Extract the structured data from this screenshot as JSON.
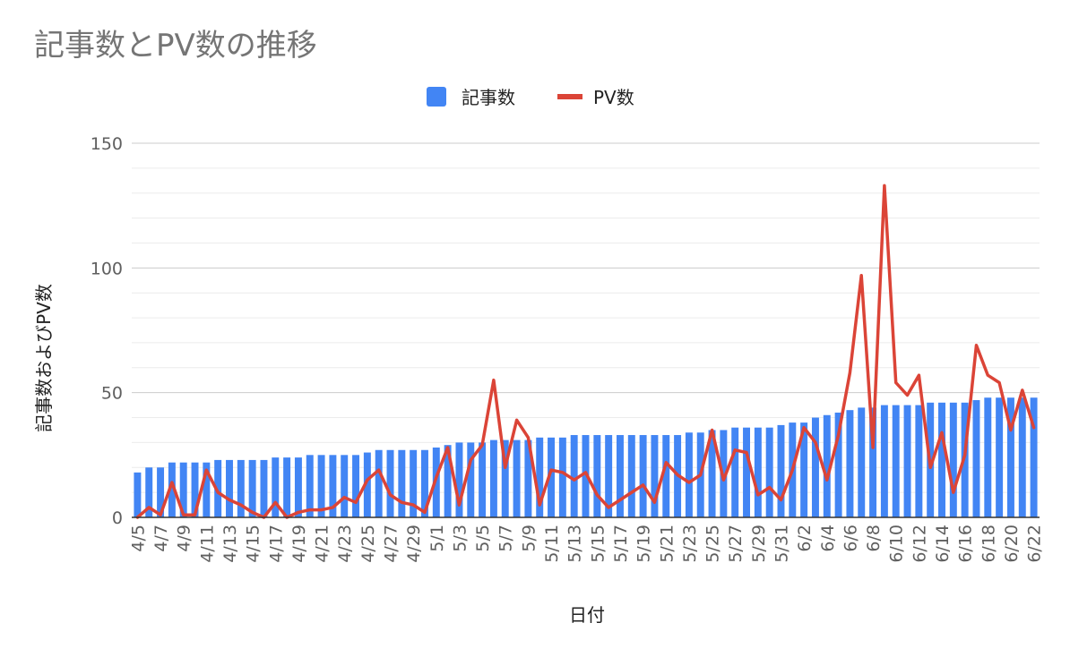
{
  "chart_data": {
    "type": "bar+line",
    "title": "記事数とPV数の推移",
    "xlabel": "日付",
    "ylabel": "記事数およびPV数",
    "ylim": [
      0,
      150
    ],
    "yticks": [
      "0",
      "50",
      "100",
      "150"
    ],
    "grid": true,
    "legend_position": "top",
    "categories": [
      "4/5",
      "4/6",
      "4/7",
      "4/8",
      "4/9",
      "4/10",
      "4/11",
      "4/12",
      "4/13",
      "4/14",
      "4/15",
      "4/16",
      "4/17",
      "4/18",
      "4/19",
      "4/20",
      "4/21",
      "4/22",
      "4/23",
      "4/24",
      "4/25",
      "4/26",
      "4/27",
      "4/28",
      "4/29",
      "4/30",
      "5/1",
      "5/2",
      "5/3",
      "5/4",
      "5/5",
      "5/6",
      "5/7",
      "5/8",
      "5/9",
      "5/10",
      "5/11",
      "5/12",
      "5/13",
      "5/14",
      "5/15",
      "5/16",
      "5/17",
      "5/18",
      "5/19",
      "5/20",
      "5/21",
      "5/22",
      "5/23",
      "5/24",
      "5/25",
      "5/26",
      "5/27",
      "5/28",
      "5/29",
      "5/30",
      "5/31",
      "6/1",
      "6/2",
      "6/3",
      "6/4",
      "6/5",
      "6/6",
      "6/7",
      "6/8",
      "6/9",
      "6/10",
      "6/11",
      "6/12",
      "6/13",
      "6/14",
      "6/15",
      "6/16",
      "6/17",
      "6/18",
      "6/19",
      "6/20",
      "6/21",
      "6/22"
    ],
    "x_tick_labels": [
      "4/5",
      "4/7",
      "4/9",
      "4/11",
      "4/13",
      "4/15",
      "4/17",
      "4/19",
      "4/21",
      "4/23",
      "4/25",
      "4/27",
      "4/29",
      "5/1",
      "5/3",
      "5/5",
      "5/7",
      "5/9",
      "5/11",
      "5/13",
      "5/15",
      "5/17",
      "5/19",
      "5/21",
      "5/23",
      "5/25",
      "5/27",
      "5/29",
      "5/31",
      "6/2",
      "6/4",
      "6/6",
      "6/8",
      "6/10",
      "6/12",
      "6/14",
      "6/16",
      "6/18",
      "6/20",
      "6/22"
    ],
    "series": [
      {
        "name": "記事数",
        "type": "bar",
        "color": "#4285f4",
        "values": [
          18,
          20,
          20,
          22,
          22,
          22,
          22,
          23,
          23,
          23,
          23,
          23,
          24,
          24,
          24,
          25,
          25,
          25,
          25,
          25,
          26,
          27,
          27,
          27,
          27,
          27,
          28,
          29,
          30,
          30,
          30,
          31,
          31,
          31,
          31,
          32,
          32,
          32,
          33,
          33,
          33,
          33,
          33,
          33,
          33,
          33,
          33,
          33,
          34,
          34,
          35,
          35,
          36,
          36,
          36,
          36,
          37,
          38,
          38,
          40,
          41,
          42,
          43,
          44,
          44,
          45,
          45,
          45,
          45,
          46,
          46,
          46,
          46,
          47,
          48,
          48,
          48,
          48,
          48
        ]
      },
      {
        "name": "PV数",
        "type": "line",
        "color": "#db4437",
        "values": [
          0,
          4,
          1,
          14,
          1,
          1,
          19,
          10,
          7,
          5,
          2,
          0,
          6,
          0,
          2,
          3,
          3,
          4,
          8,
          6,
          15,
          19,
          9,
          6,
          5,
          2,
          16,
          28,
          5,
          23,
          29,
          55,
          20,
          39,
          32,
          5,
          19,
          18,
          15,
          18,
          9,
          4,
          7,
          10,
          13,
          6,
          22,
          17,
          14,
          17,
          35,
          15,
          27,
          26,
          9,
          12,
          7,
          19,
          36,
          30,
          15,
          33,
          58,
          97,
          28,
          133,
          54,
          49,
          57,
          20,
          34,
          10,
          25,
          69,
          57,
          54,
          35,
          51,
          36
        ]
      }
    ]
  }
}
